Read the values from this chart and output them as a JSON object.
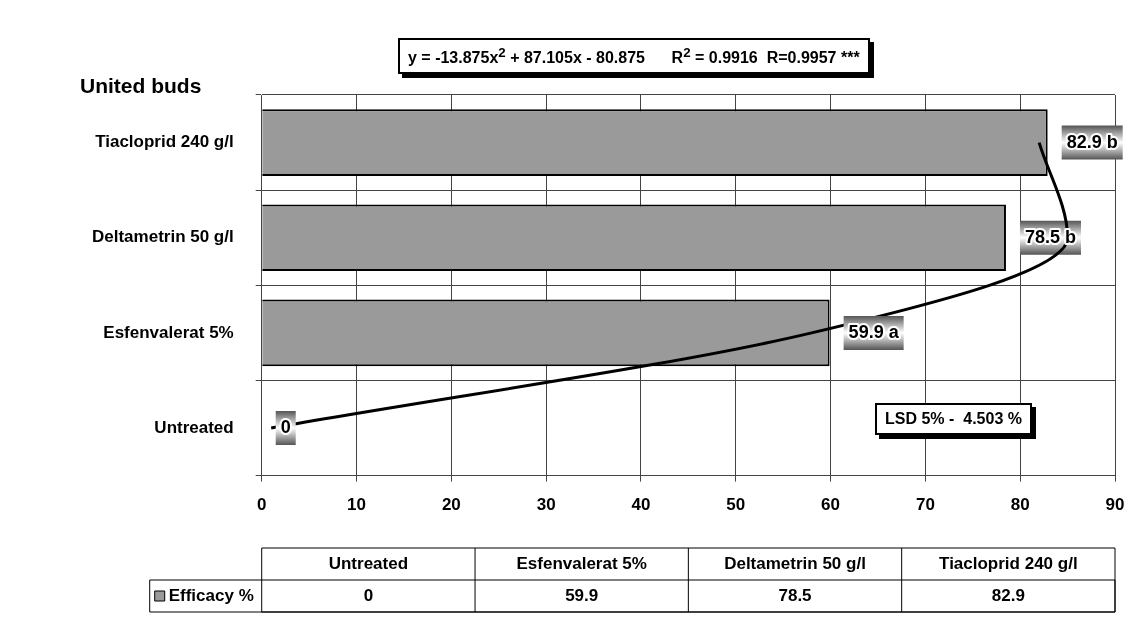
{
  "chart_data": {
    "type": "bar",
    "orientation": "horizontal",
    "title": "United buds",
    "categories": [
      "Tiacloprid 240 g/l",
      "Deltametrin 50 g/l",
      "Esfenvalerat 5%",
      "Untreated"
    ],
    "series": [
      {
        "name": "Efficacy %",
        "color": "#9a9a9a",
        "values": [
          82.9,
          78.5,
          59.9,
          0
        ],
        "value_labels": [
          "82.9 b",
          "78.5 b",
          "59.9 a",
          "0"
        ]
      },
      {
        "type": "line",
        "color": "#000000",
        "values": [
          82,
          85,
          58,
          1
        ]
      }
    ],
    "xlim": [
      0,
      90
    ],
    "xticks": [
      0,
      10,
      20,
      30,
      40,
      50,
      60,
      70,
      80,
      90
    ],
    "grid": true,
    "legend": "bottom left",
    "annotations": [
      "y = -13.875x$^{2}$ + 87.105x - 80.875      R$^{2}$ = 0.9916  R=0.9957 ***",
      "LSD 5% -  4.503 %",
      "0",
      "59.9",
      "78.5",
      "82.9"
    ]
  }
}
